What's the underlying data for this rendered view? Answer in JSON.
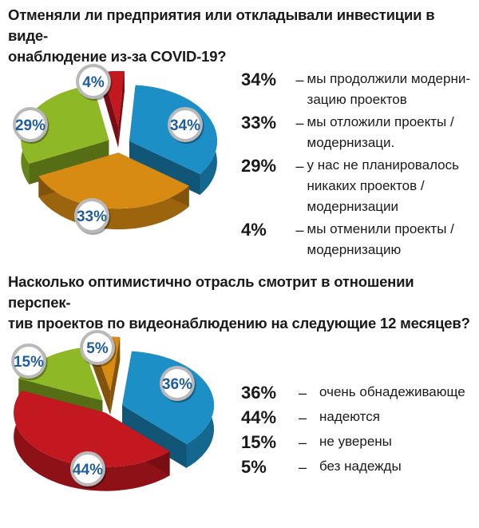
{
  "colors": {
    "blue": "#1c8fc7",
    "orange": "#d88b12",
    "green": "#8eb825",
    "red": "#c41820",
    "badge_text": "#1f5d9c"
  },
  "chart_data": [
    {
      "type": "pie",
      "title": "Отменяли ли предприятия или откладывали инвестиции в видеонаблюдение из-за COVID-19?",
      "title_display": "Отменяли ли предприятия или откладывали инвестиции в виде-онаблюдение из-за COVID-19?",
      "slices": [
        {
          "label_pct": "34%",
          "value": 34,
          "color": "#1c8fc7",
          "dash": "–",
          "text": "мы продолжили модернизацию проектов"
        },
        {
          "label_pct": "33%",
          "value": 33,
          "color": "#d88b12",
          "dash": "–",
          "text": "мы отложили проекты / модернизаци."
        },
        {
          "label_pct": "29%",
          "value": 29,
          "color": "#8eb825",
          "dash": "–",
          "text": "у нас не планировалось никаких проектов / модернизации"
        },
        {
          "label_pct": "4%",
          "value": 4,
          "color": "#c41820",
          "dash": "–",
          "text": "мы отменили проекты / модернизацию"
        }
      ]
    },
    {
      "type": "pie",
      "title": "Насколько оптимистично отрасль смотрит в отношении перспектив проектов по видеонаблюдению на следующие 12 месяцев?",
      "slices": [
        {
          "label_pct": "36%",
          "value": 36,
          "color": "#1c8fc7",
          "dash": "–",
          "text": "очень обнадеживающе"
        },
        {
          "label_pct": "44%",
          "value": 44,
          "color": "#c41820",
          "dash": "–",
          "text": "надеются"
        },
        {
          "label_pct": "15%",
          "value": 15,
          "color": "#8eb825",
          "dash": "–",
          "text": "не уверены"
        },
        {
          "label_pct": "5%",
          "value": 5,
          "color": "#d88b12",
          "dash": "–",
          "text": "без надежды"
        }
      ]
    }
  ]
}
